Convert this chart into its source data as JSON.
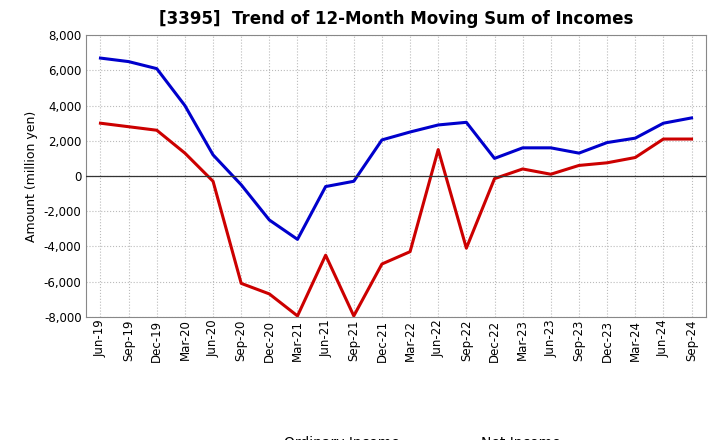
{
  "title": "[3395]  Trend of 12-Month Moving Sum of Incomes",
  "ylabel": "Amount (million yen)",
  "x_labels": [
    "Jun-19",
    "Sep-19",
    "Dec-19",
    "Mar-20",
    "Jun-20",
    "Sep-20",
    "Dec-20",
    "Mar-21",
    "Jun-21",
    "Sep-21",
    "Dec-21",
    "Mar-22",
    "Jun-22",
    "Sep-22",
    "Dec-22",
    "Mar-23",
    "Jun-23",
    "Sep-23",
    "Dec-23",
    "Mar-24",
    "Jun-24",
    "Sep-24"
  ],
  "ordinary_income": [
    6700,
    6500,
    6100,
    4000,
    1200,
    -500,
    -2500,
    -3600,
    -600,
    -300,
    2050,
    2500,
    2900,
    3050,
    1000,
    1600,
    1600,
    1300,
    1900,
    2150,
    3000,
    3300
  ],
  "net_income": [
    3000,
    2800,
    2600,
    1300,
    -300,
    -6100,
    -6700,
    -7950,
    -4500,
    -7950,
    -5000,
    -4300,
    1500,
    -4100,
    -150,
    400,
    100,
    600,
    750,
    1050,
    2100,
    2100
  ],
  "ordinary_color": "#0000cc",
  "net_color": "#cc0000",
  "ylim": [
    -8000,
    8000
  ],
  "yticks": [
    -8000,
    -6000,
    -4000,
    -2000,
    0,
    2000,
    4000,
    6000,
    8000
  ],
  "background_color": "#ffffff",
  "grid_color": "#bbbbbb",
  "title_fontsize": 12,
  "ylabel_fontsize": 9,
  "tick_fontsize": 8.5,
  "legend_fontsize": 10
}
